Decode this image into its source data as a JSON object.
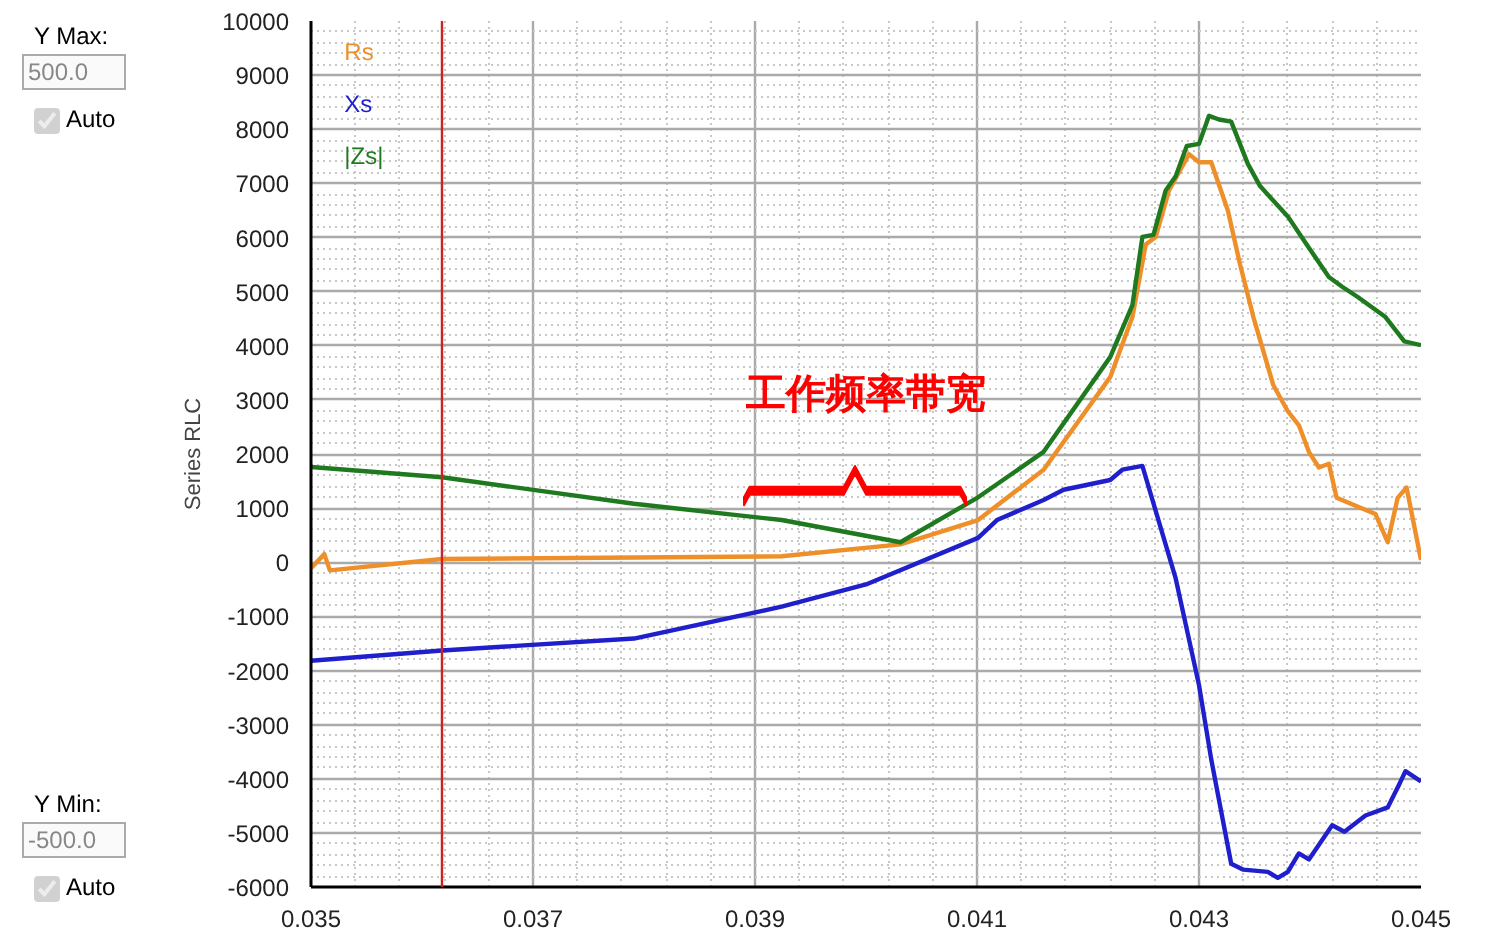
{
  "chart_data": {
    "type": "line",
    "ylabel": "Series RLC",
    "xlim": [
      0.035,
      0.045
    ],
    "xticks": [
      0.035,
      0.037,
      0.039,
      0.041,
      0.043,
      0.045
    ],
    "ylim": [
      -6000,
      10000
    ],
    "yticks": [
      -6000,
      -5000,
      -4000,
      -3000,
      -2000,
      -1000,
      0,
      1000,
      2000,
      3000,
      4000,
      5000,
      6000,
      7000,
      8000,
      9000,
      10000
    ],
    "grid": true,
    "legend": "top left",
    "marker": "none",
    "line_style": "solid",
    "series": [
      {
        "name": "Rs",
        "color": "#ee8f2a",
        "x": [
          0.035,
          0.03512,
          0.03517,
          0.03618,
          0.03924,
          0.04031,
          0.04101,
          0.0416,
          0.0422,
          0.0424,
          0.04252,
          0.04261,
          0.04273,
          0.04291,
          0.043,
          0.04311,
          0.04326,
          0.04337,
          0.04349,
          0.04367,
          0.0438,
          0.0439,
          0.04399,
          0.04408,
          0.04417,
          0.04424,
          0.04459,
          0.0447,
          0.04479,
          0.04487,
          0.045
        ],
        "values": [
          -110,
          150,
          -150,
          60,
          110,
          330,
          780,
          1710,
          3420,
          4530,
          5870,
          6010,
          6870,
          7540,
          7390,
          7390,
          6500,
          5500,
          4530,
          3270,
          2790,
          2530,
          2040,
          1750,
          1820,
          1190,
          890,
          370,
          1190,
          1380,
          40
        ]
      },
      {
        "name": "Xs",
        "color": "#1f1fcc",
        "x": [
          0.035,
          0.03618,
          0.03791,
          0.03924,
          0.04,
          0.04101,
          0.04118,
          0.0416,
          0.04178,
          0.0422,
          0.04231,
          0.04249,
          0.04279,
          0.043,
          0.04311,
          0.04329,
          0.0434,
          0.04362,
          0.04371,
          0.0438,
          0.0439,
          0.04399,
          0.0442,
          0.04431,
          0.0445,
          0.0447,
          0.0448,
          0.04486,
          0.045
        ],
        "values": [
          -1820,
          -1630,
          -1410,
          -820,
          -410,
          450,
          780,
          1150,
          1340,
          1520,
          1710,
          1780,
          -300,
          -2270,
          -3640,
          -5570,
          -5680,
          -5720,
          -5830,
          -5720,
          -5380,
          -5490,
          -4860,
          -4980,
          -4680,
          -4530,
          -4120,
          -3860,
          -4050
        ]
      },
      {
        "name": "|Zs|",
        "color": "#1f7a1f",
        "x": [
          0.035,
          0.03618,
          0.03791,
          0.03924,
          0.04031,
          0.04101,
          0.0416,
          0.0422,
          0.0424,
          0.04249,
          0.04259,
          0.0427,
          0.04279,
          0.04289,
          0.043,
          0.04309,
          0.04318,
          0.04329,
          0.04344,
          0.04355,
          0.0438,
          0.04397,
          0.04417,
          0.04429,
          0.04443,
          0.04468,
          0.04485,
          0.045
        ],
        "values": [
          1760,
          1570,
          1080,
          780,
          370,
          1200,
          2040,
          3790,
          4750,
          6010,
          6050,
          6870,
          7130,
          7690,
          7730,
          8250,
          8180,
          8140,
          7360,
          6950,
          6390,
          5870,
          5270,
          5090,
          4900,
          4530,
          4080,
          4010
        ]
      }
    ],
    "ref_lines": [
      {
        "axis": "x",
        "value": 0.03618,
        "color": "#cc2222",
        "line_style": "solid"
      }
    ],
    "annotations": [
      "Y Max:",
      "500.0",
      "Auto",
      "Y Min:",
      "-500.0",
      "Auto",
      "工作频率带宽"
    ]
  }
}
